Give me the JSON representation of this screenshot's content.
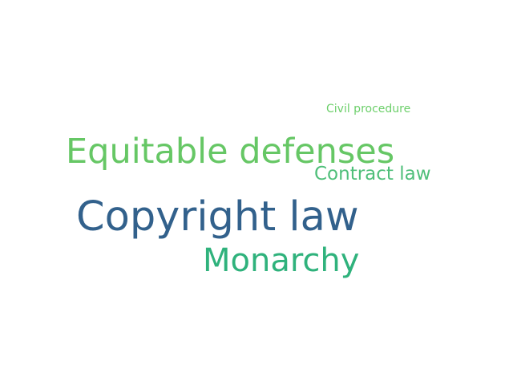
{
  "words": [
    {
      "text": "Civil procedure",
      "color": "#6ccf6a"
    },
    {
      "text": "Equitable defenses",
      "color": "#66c765"
    },
    {
      "text": "Contract law",
      "color": "#4fbf7a"
    },
    {
      "text": "Copyright law",
      "color": "#32618c"
    },
    {
      "text": "Monarchy",
      "color": "#2fb27c"
    }
  ]
}
